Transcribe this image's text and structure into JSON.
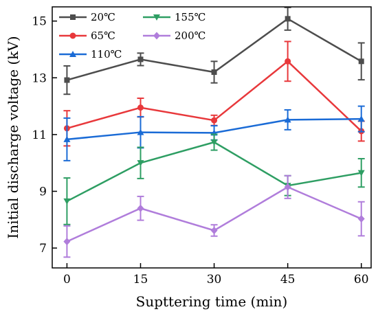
{
  "chart_data": {
    "type": "line",
    "title": "",
    "xlabel": "Supttering time (min)",
    "ylabel": "Initial discharge voltage (kV)",
    "x": [
      0,
      15,
      30,
      45,
      60
    ],
    "xticks": [
      "0",
      "15",
      "30",
      "45",
      "60"
    ],
    "yticks": [
      "7",
      "9",
      "11",
      "13",
      "15"
    ],
    "xlim": [
      -3,
      62
    ],
    "ylim": [
      6.3,
      15.5
    ],
    "grid": false,
    "legend_position": "top-left",
    "series": [
      {
        "name": "20℃",
        "color": "#4d4d4d",
        "marker": "square",
        "values": [
          12.92,
          13.65,
          13.2,
          15.08,
          13.58
        ],
        "errors": [
          0.5,
          0.22,
          0.38,
          0.4,
          0.65
        ]
      },
      {
        "name": "65℃",
        "color": "#e8383b",
        "marker": "circle",
        "values": [
          11.22,
          11.95,
          11.5,
          13.58,
          11.12
        ],
        "errors": [
          0.62,
          0.33,
          0.18,
          0.7,
          0.35
        ]
      },
      {
        "name": "110℃",
        "color": "#1a6bd6",
        "marker": "triangle-up",
        "values": [
          10.83,
          11.08,
          11.06,
          11.52,
          11.55
        ],
        "errors": [
          0.75,
          0.55,
          0.25,
          0.35,
          0.45
        ]
      },
      {
        "name": "155℃",
        "color": "#2e9e63",
        "marker": "triangle-down",
        "values": [
          8.65,
          10.0,
          10.73,
          9.2,
          9.65
        ],
        "errors": [
          0.82,
          0.55,
          0.28,
          0.35,
          0.5
        ]
      },
      {
        "name": "200℃",
        "color": "#b07ddb",
        "marker": "diamond",
        "values": [
          7.23,
          8.4,
          7.62,
          9.15,
          8.03
        ],
        "errors": [
          0.55,
          0.42,
          0.2,
          0.4,
          0.6
        ]
      }
    ]
  }
}
